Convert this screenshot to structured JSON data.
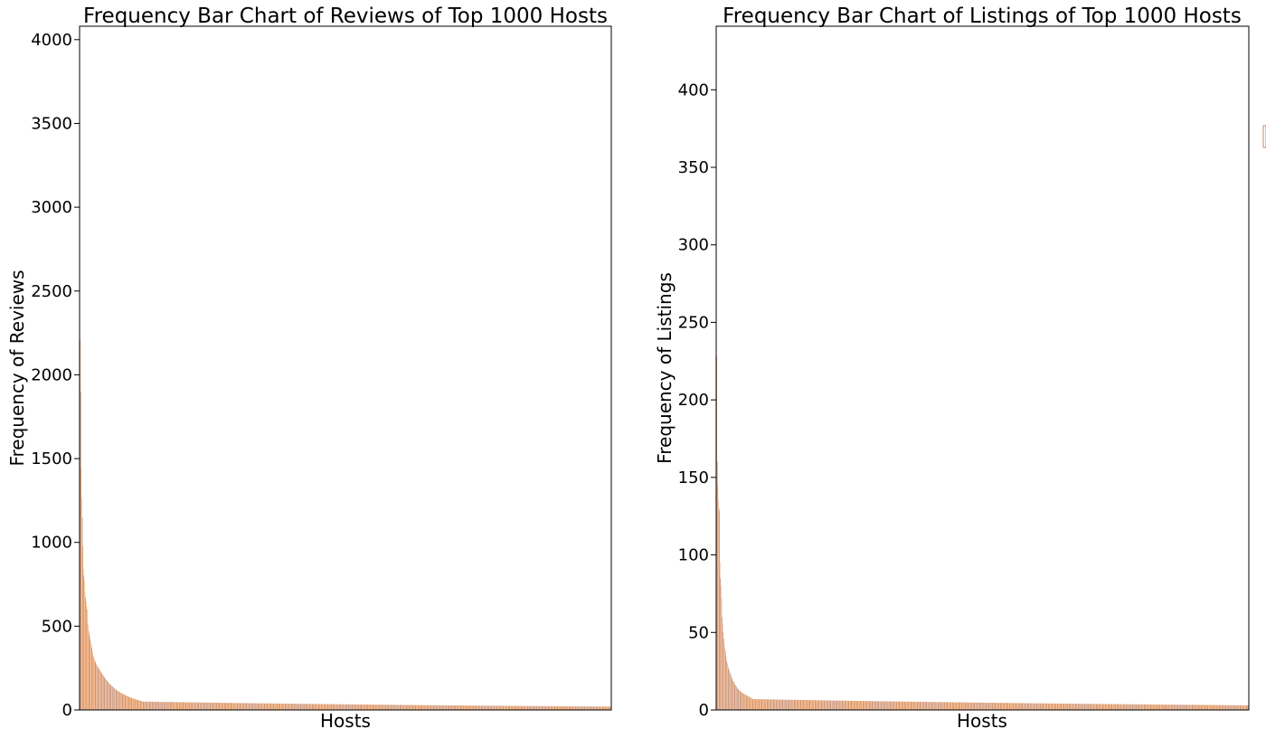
{
  "chart_data": [
    {
      "type": "bar",
      "title": "Frequency Bar Chart of Reviews of Top 1000 Hosts",
      "xlabel": "Hosts",
      "ylabel": "Frequency of Reviews",
      "ylim": [
        0,
        4080
      ],
      "yticks": [
        0,
        500,
        1000,
        1500,
        2000,
        2500,
        3000,
        3500,
        4000
      ],
      "n_bars": 1000,
      "grid": false,
      "bar_colors": [
        "#ff7f0e",
        "#dd8452",
        "#8c564b"
      ],
      "series": [
        {
          "values": [
            4050,
            2210,
            1900,
            1440,
            1260,
            1150,
            980,
            840,
            800,
            770,
            700,
            670,
            650,
            620,
            600,
            520,
            500,
            470,
            450,
            440,
            420,
            400,
            390,
            370,
            350,
            330,
            320,
            310,
            300,
            290,
            285,
            275,
            270,
            262,
            258,
            252,
            248,
            242,
            238,
            232,
            228,
            222,
            218,
            212,
            208,
            202,
            198,
            192,
            188,
            184,
            180,
            176,
            172,
            168,
            165,
            160,
            157,
            154,
            151,
            148,
            145,
            142,
            139,
            136,
            133,
            130,
            127,
            125,
            122,
            120,
            118,
            115,
            113,
            111,
            109,
            107,
            105,
            103,
            101,
            100,
            98,
            96,
            94,
            93,
            91,
            90,
            88,
            86,
            85,
            83,
            82,
            80,
            79,
            78,
            76,
            75,
            74,
            73,
            71,
            70,
            69,
            68,
            67,
            66,
            65,
            64,
            63,
            62,
            61,
            60,
            59,
            58,
            57,
            56,
            55,
            54,
            53,
            52,
            51,
            50
          ],
          "tail": {
            "start": 50,
            "end": 20
          }
        }
      ]
    },
    {
      "type": "bar",
      "title": "Frequency Bar Chart of Listings of Top 1000 Hosts",
      "xlabel": "Hosts",
      "ylabel": "Frequency of Listings",
      "ylim": [
        0,
        441
      ],
      "yticks": [
        0,
        50,
        100,
        150,
        200,
        250,
        300,
        350,
        400
      ],
      "n_bars": 1000,
      "grid": false,
      "bar_colors": [
        "#ff7f0e",
        "#dd8452",
        "#8c564b"
      ],
      "series": [
        {
          "values": [
            438,
            228,
            160,
            145,
            135,
            130,
            128,
            95,
            85,
            80,
            72,
            60,
            55,
            50,
            46,
            43,
            40,
            38,
            35,
            33,
            31,
            30,
            28,
            27,
            26,
            25,
            24,
            23,
            22,
            21,
            20,
            19,
            18.5,
            18,
            17,
            16.5,
            16,
            15.5,
            15,
            14.5,
            14,
            13.5,
            13,
            12.7,
            12.4,
            12.1,
            11.8,
            11.5,
            11.2,
            11,
            10.8,
            10.6,
            10.4,
            10.2,
            10,
            9.8,
            9.6,
            9.4,
            9.2,
            9,
            8.8,
            8.6,
            8.4,
            8.2,
            8,
            7.8,
            7.6,
            7.4,
            7.2,
            7
          ],
          "tail": {
            "start": 7,
            "end": 3
          }
        }
      ]
    }
  ]
}
